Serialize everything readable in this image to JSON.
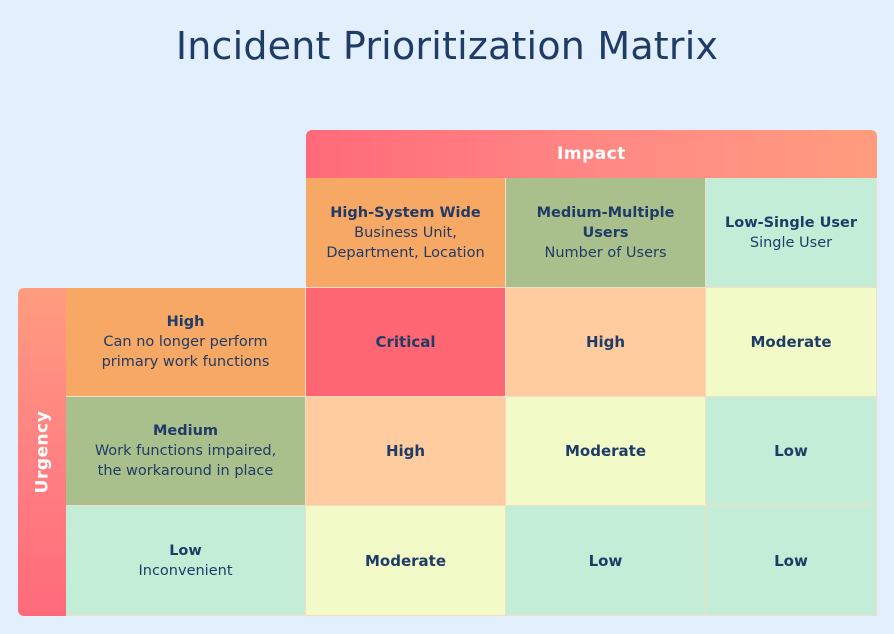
{
  "title": "Incident Prioritization Matrix",
  "impact": {
    "label": "Impact",
    "columns": [
      {
        "heading": "High-System Wide",
        "desc_lines": [
          "Business Unit,",
          "Department, Location"
        ]
      },
      {
        "heading_lines": [
          "Medium-Multiple",
          "Users"
        ],
        "desc_lines": [
          "Number of Users"
        ]
      },
      {
        "heading": "Low-Single User",
        "desc_lines": [
          "Single User"
        ]
      }
    ]
  },
  "urgency": {
    "label": "Urgency",
    "rows": [
      {
        "heading": "High",
        "desc_lines": [
          "Can no longer perform",
          "primary work functions"
        ]
      },
      {
        "heading": "Medium",
        "desc_lines": [
          "Work functions impaired,",
          "the workaround in place"
        ]
      },
      {
        "heading": "Low",
        "desc_lines": [
          "Inconvenient"
        ]
      }
    ]
  },
  "matrix": [
    [
      "Critical",
      "High",
      "Moderate"
    ],
    [
      "High",
      "Moderate",
      "Low"
    ],
    [
      "Moderate",
      "Low",
      "Low"
    ]
  ],
  "colors": {
    "critical": "#ff6674",
    "high": "#ffcc9f",
    "moderate": "#f2fbc8",
    "low": "#c4edd8",
    "banner": "#ff7f82"
  }
}
